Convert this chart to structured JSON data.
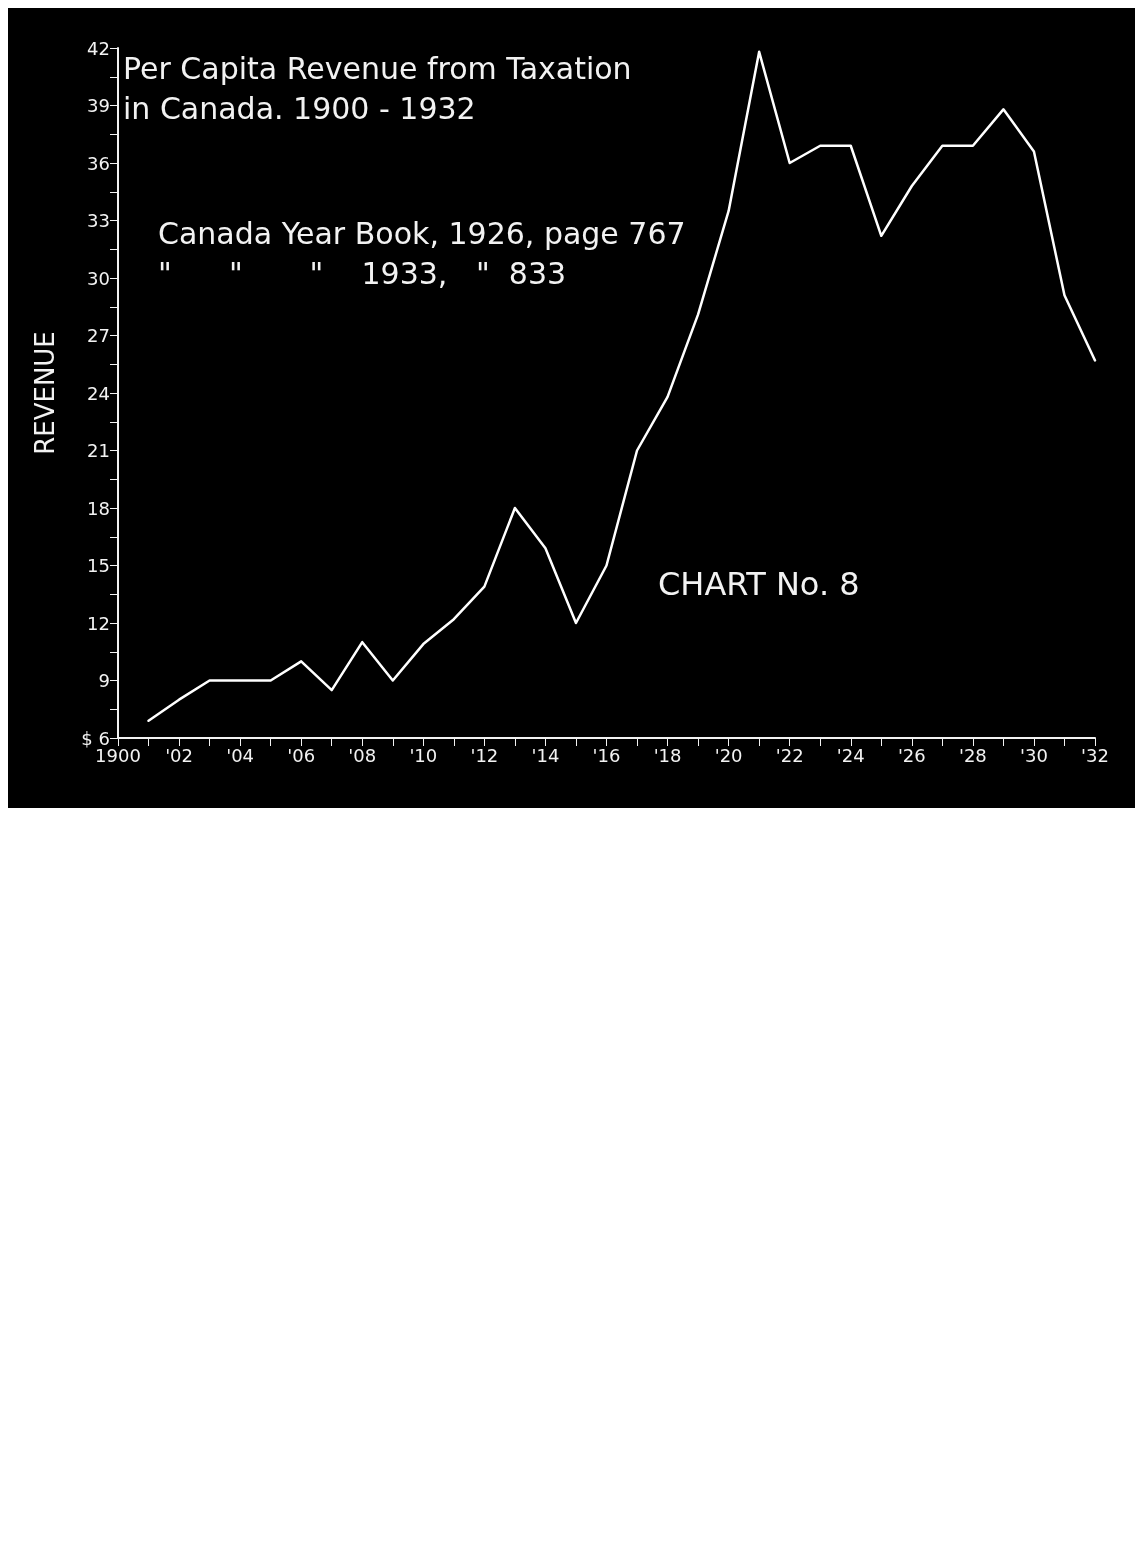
{
  "chart_data": {
    "type": "line",
    "title": "Per Capita Revenue from Taxation",
    "subtitle": "in Canada. 1900 - 1932",
    "ylabel": "REVENUE",
    "annotations": [
      "Canada Year Book, 1926, page 767",
      "\"      \"       \"    1933,   \"  833",
      "CHART No. 8"
    ],
    "x": [
      1901,
      1902,
      1903,
      1904,
      1905,
      1906,
      1907,
      1908,
      1909,
      1910,
      1911,
      1912,
      1913,
      1914,
      1915,
      1916,
      1917,
      1918,
      1919,
      1920,
      1921,
      1922,
      1923,
      1924,
      1925,
      1926,
      1927,
      1928,
      1929,
      1930,
      1931,
      1932
    ],
    "series": [
      {
        "color": "#ffffff",
        "values": [
          6.9,
          8.0,
          9.0,
          9.0,
          9.0,
          10.0,
          8.5,
          11.0,
          9.0,
          10.9,
          12.2,
          13.9,
          18.0,
          15.9,
          12.0,
          15.0,
          21.0,
          23.8,
          28.1,
          33.5,
          41.8,
          36.0,
          36.9,
          36.9,
          32.2,
          34.8,
          36.9,
          36.9,
          38.8,
          36.6,
          29.1,
          25.7
        ]
      }
    ],
    "xlim": [
      1900,
      1932
    ],
    "xticks": [
      {
        "value": 1900,
        "label": "1900"
      },
      {
        "value": 1901,
        "label": null
      },
      {
        "value": 1902,
        "label": "'02"
      },
      {
        "value": 1903,
        "label": null
      },
      {
        "value": 1904,
        "label": "'04"
      },
      {
        "value": 1905,
        "label": null
      },
      {
        "value": 1906,
        "label": "'06"
      },
      {
        "value": 1907,
        "label": null
      },
      {
        "value": 1908,
        "label": "'08"
      },
      {
        "value": 1909,
        "label": null
      },
      {
        "value": 1910,
        "label": "'10"
      },
      {
        "value": 1911,
        "label": null
      },
      {
        "value": 1912,
        "label": "'12"
      },
      {
        "value": 1913,
        "label": null
      },
      {
        "value": 1914,
        "label": "'14"
      },
      {
        "value": 1915,
        "label": null
      },
      {
        "value": 1916,
        "label": "'16"
      },
      {
        "value": 1917,
        "label": null
      },
      {
        "value": 1918,
        "label": "'18"
      },
      {
        "value": 1919,
        "label": null
      },
      {
        "value": 1920,
        "label": "'20"
      },
      {
        "value": 1921,
        "label": null
      },
      {
        "value": 1922,
        "label": "'22"
      },
      {
        "value": 1923,
        "label": null
      },
      {
        "value": 1924,
        "label": "'24"
      },
      {
        "value": 1925,
        "label": null
      },
      {
        "value": 1926,
        "label": "'26"
      },
      {
        "value": 1927,
        "label": null
      },
      {
        "value": 1928,
        "label": "'28"
      },
      {
        "value": 1929,
        "label": null
      },
      {
        "value": 1930,
        "label": "'30"
      },
      {
        "value": 1931,
        "label": null
      },
      {
        "value": 1932,
        "label": "'32"
      }
    ],
    "ylim": [
      6,
      42
    ],
    "yticks": [
      {
        "value": 6,
        "label": "$ 6"
      },
      {
        "value": 7.5,
        "label": null
      },
      9,
      {
        "value": 10.5,
        "label": null
      },
      12,
      {
        "value": 13.5,
        "label": null
      },
      15,
      {
        "value": 16.5,
        "label": null
      },
      18,
      {
        "value": 19.5,
        "label": null
      },
      21,
      {
        "value": 22.5,
        "label": null
      },
      24,
      {
        "value": 25.5,
        "label": null
      },
      27,
      {
        "value": 28.5,
        "label": null
      },
      30,
      {
        "value": 31.5,
        "label": null
      },
      33,
      {
        "value": 34.5,
        "label": null
      },
      36,
      {
        "value": 37.5,
        "label": null
      },
      39,
      {
        "value": 40.5,
        "label": null
      },
      42
    ],
    "grid": false,
    "marker": "none",
    "line_style": "solid"
  }
}
